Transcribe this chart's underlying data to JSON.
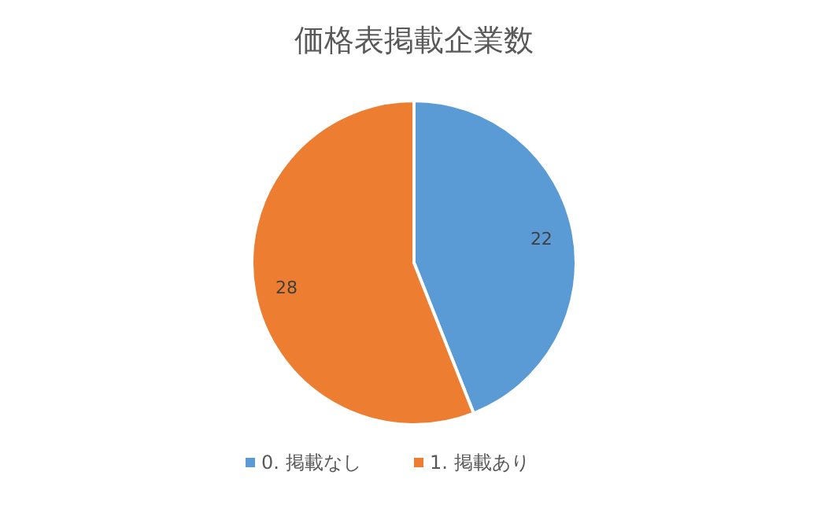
{
  "chart_data": {
    "type": "pie",
    "title": "価格表掲載企業数",
    "categories": [
      "0. 掲載なし",
      "1. 掲載あり"
    ],
    "values": [
      22,
      28
    ],
    "colors": [
      "#5b9bd5",
      "#ed7d31"
    ],
    "data_labels": true,
    "legend": "bottom"
  }
}
